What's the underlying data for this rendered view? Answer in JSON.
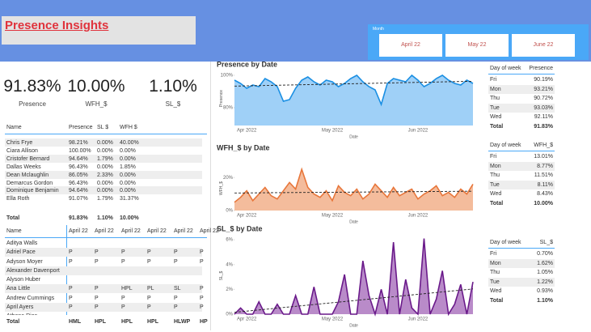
{
  "header": {
    "title": "Presence  Insights",
    "slicer_label": "Month",
    "slicer_options": [
      "April 22",
      "May 22",
      "June 22"
    ]
  },
  "kpis": [
    {
      "value": "91.83%",
      "label": "Presence"
    },
    {
      "value": "10.00%",
      "label": "WFH_$"
    },
    {
      "value": "1.10%",
      "label": "SL_$"
    }
  ],
  "employee_table": {
    "columns": [
      "Name",
      "Presence",
      "SL $",
      "WFH $"
    ],
    "rows": [
      [
        "Chris Frye",
        "98.21%",
        "0.00%",
        "40.00%"
      ],
      [
        "Ciara Allison",
        "100.00%",
        "0.00%",
        "0.00%"
      ],
      [
        "Cristofer Bernard",
        "94.64%",
        "1.79%",
        "0.00%"
      ],
      [
        "Dallas Weeks",
        "96.43%",
        "0.00%",
        "1.85%"
      ],
      [
        "Dean Mclaughlin",
        "86.05%",
        "2.33%",
        "0.00%"
      ],
      [
        "Demarcus Gordon",
        "96.43%",
        "0.00%",
        "0.00%"
      ],
      [
        "Dominique Benjamin",
        "94.64%",
        "0.00%",
        "0.00%"
      ],
      [
        "Ella Roth",
        "91.07%",
        "1.79%",
        "31.37%"
      ]
    ],
    "total": [
      "Total",
      "91.83%",
      "1.10%",
      "10.00%"
    ]
  },
  "attendance_table": {
    "columns": [
      "Name",
      "April 22",
      "April 22",
      "April 22",
      "April 22",
      "April 22",
      "April 22"
    ],
    "rows": [
      [
        "Aditya Walls",
        null,
        null,
        null,
        null,
        null,
        null
      ],
      [
        "Adriel Pace",
        "P",
        "P",
        "P",
        "P",
        "P",
        "P"
      ],
      [
        "Adyson Moyer",
        "P",
        "P",
        "P",
        "P",
        "P",
        "P"
      ],
      [
        "Alexander Davenport",
        null,
        null,
        null,
        null,
        null,
        null
      ],
      [
        "Alyson Huber",
        null,
        null,
        null,
        null,
        null,
        null
      ],
      [
        "Ana Little",
        "P",
        "P",
        "HPL",
        "PL",
        "SL",
        "P"
      ],
      [
        "Andrew Cummings",
        "P",
        "P",
        "P",
        "P",
        "P",
        "P"
      ],
      [
        "April Ayers",
        "P",
        "P",
        "P",
        "P",
        "P",
        "P"
      ],
      [
        "Athena Rios",
        null,
        null,
        null,
        null,
        null,
        null
      ]
    ],
    "total": [
      "Total",
      "HML",
      "HPL",
      "HPL",
      "HPL",
      "HLWP",
      "HP"
    ]
  },
  "day_tables": [
    {
      "columns": [
        "Day of week",
        "Presence"
      ],
      "rows": [
        [
          "Fri",
          "90.19%"
        ],
        [
          "Mon",
          "93.21%"
        ],
        [
          "Thu",
          "90.72%"
        ],
        [
          "Tue",
          "93.03%"
        ],
        [
          "Wed",
          "92.11%"
        ]
      ],
      "total": [
        "Total",
        "91.83%"
      ]
    },
    {
      "columns": [
        "Day of week",
        "WFH_$"
      ],
      "rows": [
        [
          "Fri",
          "13.01%"
        ],
        [
          "Mon",
          "8.77%"
        ],
        [
          "Thu",
          "11.51%"
        ],
        [
          "Tue",
          "8.11%"
        ],
        [
          "Wed",
          "8.43%"
        ]
      ],
      "total": [
        "Total",
        "10.00%"
      ]
    },
    {
      "columns": [
        "Day of week",
        "SL_$"
      ],
      "rows": [
        [
          "Fri",
          "0.70%"
        ],
        [
          "Mon",
          "1.62%"
        ],
        [
          "Thu",
          "1.05%"
        ],
        [
          "Tue",
          "1.22%"
        ],
        [
          "Wed",
          "0.93%"
        ]
      ],
      "total": [
        "Total",
        "1.10%"
      ]
    }
  ],
  "chart_data": [
    {
      "type": "area",
      "title": "Presence by Date",
      "x_label": "Date",
      "y_label": "Presence",
      "color": "#1a8fe3",
      "fill": "#9fd0f7",
      "trend_line": true,
      "categories": [
        null,
        null,
        "Apr 2022",
        null,
        null,
        null,
        null,
        null,
        null,
        null,
        null,
        null,
        null,
        null,
        null,
        null,
        "May 2022",
        null,
        null,
        null,
        null,
        null,
        null,
        null,
        null,
        null,
        null,
        null,
        null,
        null,
        "Jun 2022",
        null,
        null,
        null,
        null,
        null,
        null,
        null,
        null,
        null
      ],
      "values": [
        97,
        95,
        92,
        94,
        93,
        98,
        96,
        93,
        84,
        85,
        92,
        97,
        99,
        96,
        94,
        97,
        96,
        93,
        95,
        98,
        100,
        96,
        93,
        91,
        82,
        95,
        98,
        97,
        96,
        100,
        97,
        93,
        95,
        98,
        100,
        97,
        95,
        94,
        97,
        95
      ],
      "ylim": [
        69,
        102.5
      ],
      "yticks": [
        {
          "value": 100,
          "label": "100%"
        },
        {
          "value": 80,
          "label": "80%"
        }
      ]
    },
    {
      "type": "area",
      "title": "WFH_$ by Date",
      "x_label": "Date",
      "y_label": "WFH_$",
      "color": "#e8763a",
      "fill": "#f4bc9c",
      "trend_line": true,
      "categories": [
        null,
        null,
        "Apr 2022",
        null,
        null,
        null,
        null,
        null,
        null,
        null,
        null,
        null,
        null,
        null,
        null,
        null,
        "May 2022",
        null,
        null,
        null,
        null,
        null,
        null,
        null,
        null,
        null,
        null,
        null,
        null,
        null,
        "Jun 2022",
        null,
        null,
        null,
        null,
        null,
        null,
        null,
        null,
        null
      ],
      "values": [
        5,
        8,
        12,
        6,
        10,
        14,
        9,
        7,
        12,
        17,
        13,
        25,
        14,
        10,
        8,
        12,
        6,
        15,
        11,
        9,
        13,
        7,
        10,
        16,
        12,
        8,
        14,
        9,
        11,
        13,
        7,
        10,
        12,
        15,
        9,
        11,
        8,
        13,
        10,
        16
      ],
      "ylim": [
        0,
        27
      ],
      "yticks": [
        {
          "value": 20,
          "label": "20%"
        },
        {
          "value": 0,
          "label": "0%"
        }
      ]
    },
    {
      "type": "area",
      "title": "SL_$ by Date",
      "x_label": "Date",
      "y_label": "SL_$",
      "color": "#6a1a8a",
      "fill": "#b98bc9",
      "trend_line": true,
      "categories": [
        null,
        null,
        "Apr 2022",
        null,
        null,
        null,
        null,
        null,
        null,
        null,
        null,
        null,
        null,
        null,
        null,
        null,
        "May 2022",
        null,
        null,
        null,
        null,
        null,
        null,
        null,
        null,
        null,
        null,
        null,
        null,
        null,
        "Jun 2022",
        null,
        null,
        null,
        null,
        null,
        null,
        null,
        null,
        null
      ],
      "values": [
        0,
        0.5,
        0,
        0,
        1,
        0,
        0,
        0.8,
        0,
        0,
        1.5,
        0,
        0,
        2.2,
        0,
        0,
        0,
        1,
        3.2,
        0,
        0,
        4.3,
        1.5,
        0,
        2,
        0,
        5.8,
        0,
        2.8,
        0.5,
        0,
        6.1,
        0,
        1.2,
        3.5,
        0,
        0.8,
        2.4,
        0,
        2.6
      ],
      "ylim": [
        0,
        6.2
      ],
      "yticks": [
        {
          "value": 6,
          "label": "6%"
        },
        {
          "value": 4,
          "label": "4%"
        },
        {
          "value": 2,
          "label": "2%"
        },
        {
          "value": 0,
          "label": "0%"
        }
      ]
    }
  ]
}
